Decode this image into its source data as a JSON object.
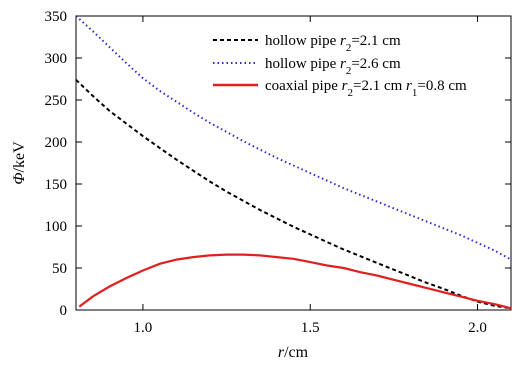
{
  "chart_data": {
    "type": "line",
    "xlabel": {
      "main": "r",
      "unit": "/cm"
    },
    "ylabel": {
      "main": "Φ",
      "unit": "/keV"
    },
    "xlim": [
      0.8,
      2.1
    ],
    "ylim": [
      0,
      350
    ],
    "xticks": [
      1.0,
      1.5,
      2.0
    ],
    "xtick_labels": [
      "1.0",
      "1.5",
      "2.0"
    ],
    "yticks": [
      0,
      50,
      100,
      150,
      200,
      250,
      300,
      350
    ],
    "ytick_labels": [
      "0",
      "50",
      "100",
      "150",
      "200",
      "250",
      "300",
      "350"
    ],
    "grid": false,
    "legend_position": "top-right",
    "series": [
      {
        "legend": [
          {
            "text": "hollow pipe "
          },
          {
            "text": "r",
            "italic": true
          },
          {
            "text": "2",
            "sub": true
          },
          {
            "text": "=2.1 cm"
          }
        ],
        "color": "#000000",
        "dash": "4,3",
        "x": [
          0.8,
          0.85,
          0.9,
          0.95,
          1.0,
          1.05,
          1.1,
          1.15,
          1.2,
          1.25,
          1.3,
          1.35,
          1.4,
          1.45,
          1.5,
          1.55,
          1.6,
          1.65,
          1.7,
          1.75,
          1.8,
          1.85,
          1.9,
          1.95,
          2.0,
          2.05,
          2.1
        ],
        "y": [
          274,
          255,
          237,
          222,
          207,
          193,
          179,
          166,
          153,
          141,
          130,
          119,
          109,
          99,
          90,
          81,
          72,
          64,
          56,
          48,
          40,
          32,
          25,
          17,
          10,
          5,
          2
        ]
      },
      {
        "legend": [
          {
            "text": "hollow pipe "
          },
          {
            "text": "r",
            "italic": true
          },
          {
            "text": "2",
            "sub": true
          },
          {
            "text": "=2.6 cm"
          }
        ],
        "color": "#2a2ad6",
        "dash": "1.5,3",
        "x": [
          0.8,
          0.85,
          0.9,
          0.95,
          1.0,
          1.05,
          1.1,
          1.15,
          1.2,
          1.25,
          1.3,
          1.35,
          1.4,
          1.45,
          1.5,
          1.55,
          1.6,
          1.65,
          1.7,
          1.75,
          1.8,
          1.85,
          1.9,
          1.95,
          2.0,
          2.05,
          2.1
        ],
        "y": [
          350,
          332,
          313,
          294,
          276,
          261,
          248,
          235,
          223,
          212,
          201,
          191,
          181,
          172,
          163,
          154,
          145,
          137,
          129,
          121,
          113,
          105,
          97,
          89,
          80,
          71,
          60
        ]
      },
      {
        "legend": [
          {
            "text": "coaxial pipe "
          },
          {
            "text": "r",
            "italic": true
          },
          {
            "text": "2",
            "sub": true
          },
          {
            "text": "=2.1 cm "
          },
          {
            "text": "r",
            "italic": true
          },
          {
            "text": "1",
            "sub": true
          },
          {
            "text": "=0.8 cm"
          }
        ],
        "color": "#e02020",
        "dash": "",
        "x": [
          0.81,
          0.85,
          0.9,
          0.95,
          1.0,
          1.05,
          1.1,
          1.15,
          1.2,
          1.25,
          1.3,
          1.35,
          1.4,
          1.45,
          1.5,
          1.55,
          1.6,
          1.65,
          1.7,
          1.75,
          1.8,
          1.85,
          1.9,
          1.95,
          2.0,
          2.05,
          2.1
        ],
        "y": [
          4,
          16,
          28,
          38,
          47,
          55,
          60,
          63,
          65,
          66,
          66,
          65,
          63,
          61,
          57,
          53,
          50,
          45,
          41,
          36,
          31,
          26,
          21,
          16,
          11,
          7,
          2
        ]
      }
    ]
  }
}
